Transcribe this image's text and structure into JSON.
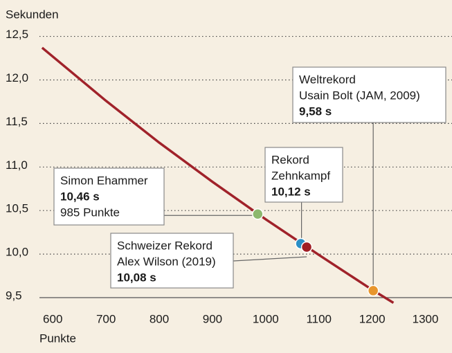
{
  "chart_data": {
    "type": "line",
    "y_label": "Sekunden",
    "x_label": "Punkte",
    "xlim": [
      575,
      1350
    ],
    "ylim": [
      9.5,
      12.6
    ],
    "xticks": [
      600,
      700,
      800,
      900,
      1000,
      1100,
      1200,
      1300
    ],
    "yticks": [
      {
        "value": 9.5,
        "label": "9,5"
      },
      {
        "value": 10.0,
        "label": "10,0"
      },
      {
        "value": 10.5,
        "label": "10,5"
      },
      {
        "value": 11.0,
        "label": "11,0"
      },
      {
        "value": 11.5,
        "label": "11,5"
      },
      {
        "value": 12.0,
        "label": "12,0"
      },
      {
        "value": 12.5,
        "label": "12,5"
      }
    ],
    "grid": true,
    "line": {
      "color": "#a0222a",
      "x": [
        580,
        700,
        800,
        900,
        1000,
        1100,
        1200,
        1240
      ],
      "y": [
        12.37,
        11.76,
        11.28,
        10.83,
        10.4,
        9.99,
        9.59,
        9.44
      ]
    },
    "markers": [
      {
        "title": [
          "Simon Ehammer"
        ],
        "x": 985,
        "y": 10.46,
        "color": "#8cb86e",
        "value_label": "10,46 s",
        "x_value_label": "985 Punkte"
      },
      {
        "title": [
          "Rekord",
          "Zehnkampf"
        ],
        "x": 1066,
        "y": 10.12,
        "color": "#2a8fc6",
        "value_label": "10,12 s"
      },
      {
        "title": [
          "Schweizer Rekord",
          "Alex Wilson (2019)"
        ],
        "x": 1077,
        "y": 10.08,
        "color": "#a01e23",
        "value_label": "10,08 s"
      },
      {
        "title": [
          "Weltrekord",
          "Usain Bolt (JAM, 2009)"
        ],
        "x": 1202,
        "y": 9.58,
        "color": "#e8962e",
        "value_label": "9,58 s"
      }
    ]
  }
}
